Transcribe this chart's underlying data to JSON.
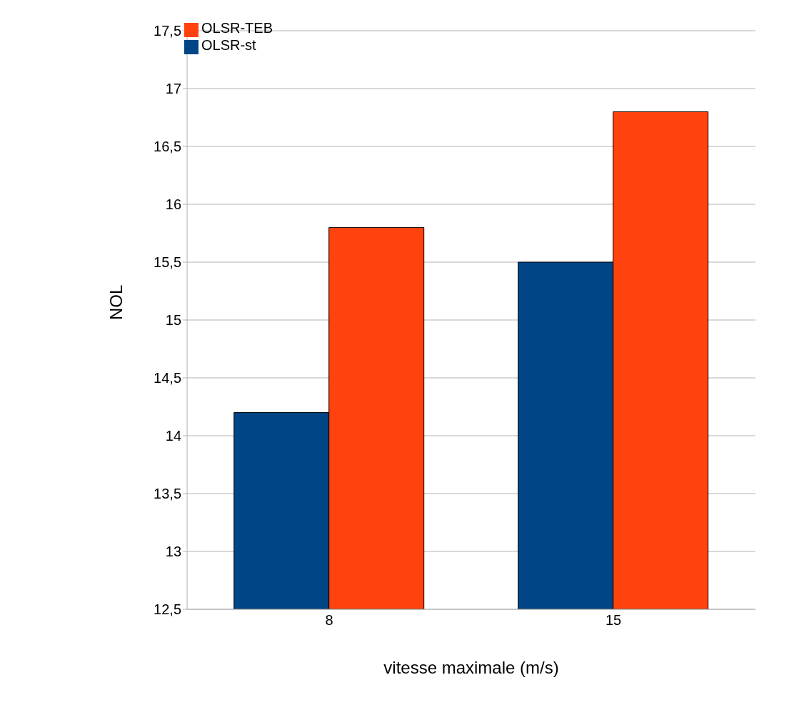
{
  "chart_data": {
    "type": "bar",
    "xlabel": "vitesse maximale (m/s)",
    "ylabel": "NOL",
    "categories": [
      "8",
      "15"
    ],
    "series": [
      {
        "name": "OLSR-st",
        "color": "#004586",
        "values": [
          14.2,
          15.5
        ]
      },
      {
        "name": "OLSR-TEB",
        "color": "#ff420e",
        "values": [
          15.8,
          16.8
        ]
      }
    ],
    "ylim": [
      12.5,
      17.5
    ],
    "yticks": [
      {
        "value": 12.5,
        "label": "12,5"
      },
      13,
      {
        "value": 13.5,
        "label": "13,5"
      },
      14,
      {
        "value": 14.5,
        "label": "14,5"
      },
      15,
      {
        "value": 15.5,
        "label": "15,5"
      },
      16,
      {
        "value": 16.5,
        "label": "16,5"
      },
      17,
      {
        "value": 17.5,
        "label": "17,5"
      }
    ],
    "grid": "y",
    "legend": "top left"
  }
}
